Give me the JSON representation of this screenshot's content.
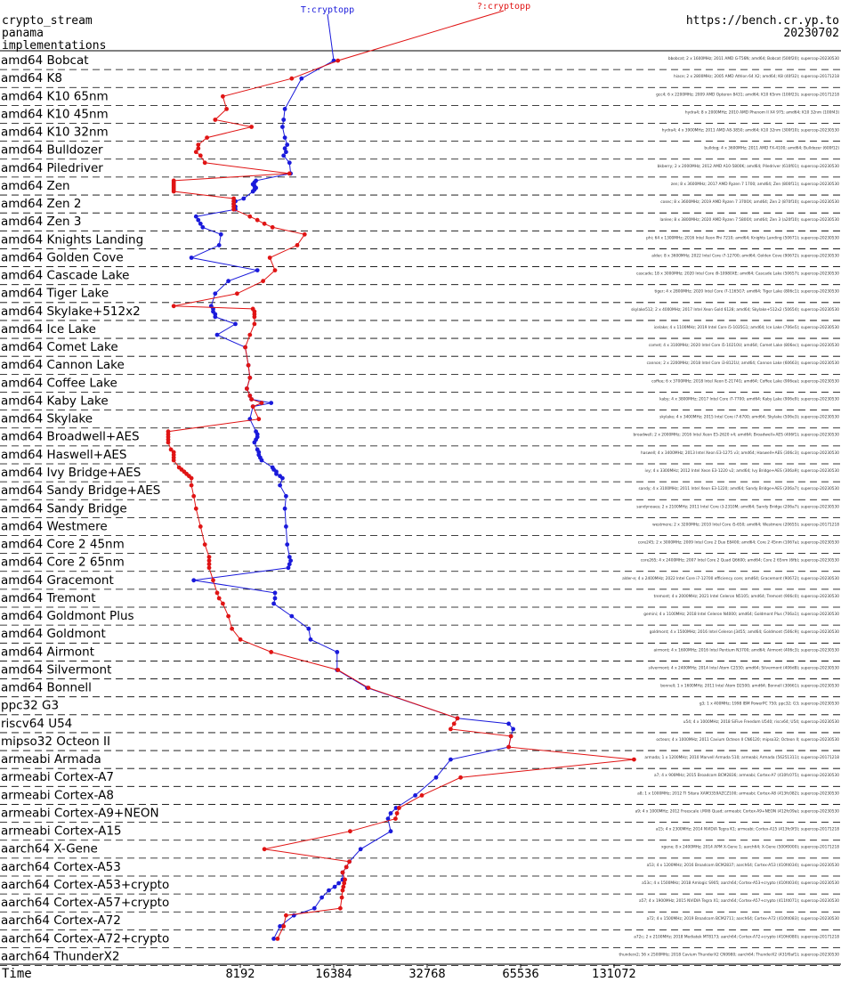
{
  "header": {
    "line1": "crypto_stream",
    "line2": "panama",
    "line3": "implementations",
    "url": "https://bench.cr.yp.to",
    "date": "20230702"
  },
  "colors": {
    "T_cryptopp": "#1a1adb",
    "Q_cryptopp": "#e01414",
    "text": "#000000",
    "grid": "#000000"
  },
  "chart_data": {
    "type": "line",
    "x_scale": "log2",
    "xlabel": "Time",
    "xticks": [
      8192,
      16384,
      32768,
      65536,
      131072
    ],
    "series": [
      {
        "name": "T:cryptopp",
        "color": "#1a1adb"
      },
      {
        "name": "?:cryptopp",
        "color": "#e01414"
      }
    ],
    "rows": [
      {
        "label": "amd64 Bobcat",
        "T": [
          16384
        ],
        "Q": [
          16900
        ]
      },
      {
        "label": "amd64 K8",
        "T": [
          12900
        ],
        "Q": [
          12000
        ]
      },
      {
        "label": "amd64 K10 65nm",
        "T": [],
        "Q": [
          7200
        ]
      },
      {
        "label": "amd64 K10 45nm",
        "T": [
          11400,
          11300
        ],
        "Q": [
          7400,
          6800
        ]
      },
      {
        "label": "amd64 K10 32nm",
        "T": [
          11200,
          11400
        ],
        "Q": [
          8900,
          6400
        ]
      },
      {
        "label": "amd64 Bulldozer",
        "T": [
          11600,
          11400,
          11500,
          11300
        ],
        "Q": [
          6000,
          6000,
          5900,
          6100
        ]
      },
      {
        "label": "amd64 Piledriver",
        "T": [
          11800,
          11900
        ],
        "Q": [
          6300,
          11800
        ]
      },
      {
        "label": "amd64 Zen",
        "T": [
          9200,
          9100,
          9000,
          9100,
          9200,
          9100,
          9000
        ],
        "Q": [
          5000,
          5000,
          5000,
          5000,
          5000,
          5000,
          5000
        ]
      },
      {
        "label": "amd64 Zen 2",
        "T": [
          8400,
          7900,
          7800,
          7900,
          7900
        ],
        "Q": [
          7800,
          7800,
          7800,
          7800,
          7800
        ]
      },
      {
        "label": "amd64 Zen 3",
        "T": [
          5900,
          6000,
          6100,
          6200
        ],
        "Q": [
          8800,
          9300,
          9800,
          10400
        ]
      },
      {
        "label": "amd64 Knights Landing",
        "T": [
          7100,
          7000
        ],
        "Q": [
          13200,
          12500
        ]
      },
      {
        "label": "amd64 Golden Cove",
        "T": [
          5700
        ],
        "Q": [
          10200
        ]
      },
      {
        "label": "amd64 Cascade Lake",
        "T": [
          9300,
          7500
        ],
        "Q": [
          10600,
          9700
        ]
      },
      {
        "label": "amd64 Tiger Lake",
        "T": [
          6800
        ],
        "Q": [
          8000
        ]
      },
      {
        "label": "amd64 Skylake+512x2",
        "T": [
          6600,
          6700,
          6700,
          6800,
          6800
        ],
        "Q": [
          5000,
          9000,
          9100,
          9100,
          9100
        ]
      },
      {
        "label": "amd64 Ice Lake",
        "T": [
          7900,
          6900
        ],
        "Q": [
          9100,
          8800
        ]
      },
      {
        "label": "amd64 Comet Lake",
        "T": [
          8500
        ],
        "Q": [
          8500
        ]
      },
      {
        "label": "amd64 Cannon Lake",
        "T": [
          8700
        ],
        "Q": [
          8700
        ]
      },
      {
        "label": "amd64 Coffee Lake",
        "T": [
          8800,
          8600
        ],
        "Q": [
          8800,
          8600
        ]
      },
      {
        "label": "amd64 Kaby Lake",
        "T": [
          8800,
          8900,
          10300,
          9000
        ],
        "Q": [
          8800,
          8900,
          9600,
          9000
        ]
      },
      {
        "label": "amd64 Skylake",
        "T": [
          8800
        ],
        "Q": [
          9400
        ]
      },
      {
        "label": "amd64 Broadwell+AES",
        "T": [
          9200,
          9300,
          9300,
          9200,
          9100
        ],
        "Q": [
          4800,
          4800,
          4800,
          4800,
          4800
        ]
      },
      {
        "label": "amd64 Haswell+AES",
        "T": [
          9300,
          9400,
          9400,
          9500,
          9600
        ],
        "Q": [
          4900,
          5000,
          5000,
          5000,
          5000
        ]
      },
      {
        "label": "amd64 Ivy Bridge+AES",
        "T": [
          10400,
          10500,
          10700,
          10700,
          11000,
          11200
        ],
        "Q": [
          5200,
          5300,
          5400,
          5500,
          5600,
          5700
        ]
      },
      {
        "label": "amd64 Sandy Bridge+AES",
        "T": [
          11000,
          11500
        ],
        "Q": [
          5700,
          5800
        ]
      },
      {
        "label": "amd64 Sandy Bridge",
        "T": [
          11400
        ],
        "Q": [
          5900
        ]
      },
      {
        "label": "amd64 Westmere",
        "T": [
          11500
        ],
        "Q": [
          6100
        ]
      },
      {
        "label": "amd64 Core 2 45nm",
        "T": [
          11600
        ],
        "Q": [
          6300
        ]
      },
      {
        "label": "amd64 Core 2 65nm",
        "T": [
          11800,
          11900,
          11800,
          11700
        ],
        "Q": [
          6500,
          6500,
          6500,
          6500
        ]
      },
      {
        "label": "amd64 Gracemont",
        "T": [
          5800
        ],
        "Q": [
          6700
        ]
      },
      {
        "label": "amd64 Tremont",
        "T": [
          10600,
          10600,
          10500
        ],
        "Q": [
          6900,
          7000,
          7200
        ]
      },
      {
        "label": "amd64 Goldmont Plus",
        "T": [
          12000
        ],
        "Q": [
          7500
        ]
      },
      {
        "label": "amd64 Goldmont",
        "T": [
          13600,
          13800
        ],
        "Q": [
          7700,
          8200
        ]
      },
      {
        "label": "amd64 Airmont",
        "T": [
          16800
        ],
        "Q": [
          10300
        ]
      },
      {
        "label": "amd64 Silvermont",
        "T": [
          16800
        ],
        "Q": [
          16900
        ]
      },
      {
        "label": "amd64 Bonnell",
        "T": [
          21000
        ],
        "Q": [
          21200
        ]
      },
      {
        "label": "ppc32 G3",
        "T": [],
        "Q": []
      },
      {
        "label": "riscv64 U54",
        "T": [
          41000,
          60000,
          62000
        ],
        "Q": [
          41000,
          40000,
          39000
        ]
      },
      {
        "label": "mipso32 Octeon II",
        "T": [
          61000,
          60000
        ],
        "Q": [
          61000,
          60000
        ]
      },
      {
        "label": "armeabi Armada",
        "T": [
          39000
        ],
        "Q": [
          152000
        ]
      },
      {
        "label": "armeabi Cortex-A7",
        "T": [
          35000
        ],
        "Q": [
          42000
        ]
      },
      {
        "label": "armeabi Cortex-A8",
        "T": [
          30000
        ],
        "Q": [
          31500
        ]
      },
      {
        "label": "armeabi Cortex-A9+NEON",
        "T": [
          26000,
          25000,
          24500
        ],
        "Q": [
          26600,
          26200,
          25900
        ]
      },
      {
        "label": "armeabi Cortex-A15",
        "T": [
          25000
        ],
        "Q": [
          18500
        ]
      },
      {
        "label": "aarch64 X-Gene",
        "T": [
          20000
        ],
        "Q": [
          9800
        ]
      },
      {
        "label": "aarch64 Cortex-A53",
        "T": [
          18400,
          18000,
          17500
        ],
        "Q": [
          18400,
          18000,
          17500
        ]
      },
      {
        "label": "aarch64 Cortex-A53+crypto",
        "T": [
          17500,
          17000,
          16500,
          15800
        ],
        "Q": [
          17800,
          17700,
          17600,
          17500
        ]
      },
      {
        "label": "aarch64 Cortex-A57+crypto",
        "T": [
          15000,
          14200
        ],
        "Q": [
          17400,
          17200
        ]
      },
      {
        "label": "aarch64 Cortex-A72",
        "T": [
          12200,
          11000
        ],
        "Q": [
          11500,
          11300
        ]
      },
      {
        "label": "aarch64 Cortex-A72+crypto",
        "T": [
          10500
        ],
        "Q": [
          10800
        ]
      },
      {
        "label": "aarch64 ThunderX2",
        "T": [],
        "Q": []
      }
    ],
    "annotations": [
      "bbobcat; 2 x 1600MHz; 2011 AMD G-T56N; amd64; Bobcat (500f20); supercop-20230530",
      "hiace; 2 x 2800MHz; 2005 AMD Athlon 64 X2; amd64; K8 (40f32); supercop-20171218",
      "gcc4; 6 x 2200MHz; 2009 AMD Opteron 8431; amd64; K10 65nm (100f23); supercop-20171218",
      "hydra4; 8 x 2000MHz; 2010 AMD Phenom II X4 975; amd64; K10 32nm (100f43)",
      "hydra4; 4 x 3900MHz; 2011 AMD A8-3850; amd64; K10 32nm (300f10); supercop-20230530",
      "bulldog; 4 x 3600MHz; 2011 AMD FX-4100; amd64; Bulldozer (600f12)",
      "bkberry; 2 x 2000MHz; 2012 AMD A10-5800K; amd64; Piledriver (610f01); supercop-20230530",
      "zen; 8 x 3600MHz; 2017 AMD Ryzen 7 1700; amd64; Zen (800f11); supercop-20230530",
      "cosec; 8 x 3600MHz; 2019 AMD Ryzen 7 3700X; amd64; Zen 2 (870f10); supercop-20230530",
      "lanlee; 8 x 3800MHz; 2020 AMD Ryzen 7 5800X; amd64; Zen 3 (a20f10); supercop-20230530",
      "phi; 64 x 1300MHz; 2016 Intel Xeon Phi 7210; amd64; Knights Landing (50671); supercop-20230530",
      "alder; 8 x 3600MHz; 2022 Intel Core i7-12700; amd64; Golden Cove (90672); supercop-20230530",
      "cascade; 18 x 3000MHz; 2020 Intel Core i9-10980XE; amd64; Cascade Lake (50657); supercop-20230530",
      "tiger; 4 x 2800MHz; 2020 Intel Core i7-1165G7; amd64; Tiger Lake (806c1); supercop-20230530",
      "skylake512; 2 x 4000MHz; 2017 Intel Xeon Gold 6128; amd64; Skylake+512x2 (50654); supercop-20230530",
      "icelake; 4 x 1100MHz; 2019 Intel Core i5-1035G1; amd64; Ice Lake (706e5); supercop-20230530",
      "comet; 4 x 3100MHz; 2020 Intel Core i5-10210U; amd64; Comet Lake (806ec); supercop-20230530",
      "cannon; 2 x 2200MHz; 2018 Intel Core i3-8121U; amd64; Cannon Lake (60663); supercop-20230530",
      "coffee; 6 x 3700MHz; 2018 Intel Xeon E-2174G; amd64; Coffee Lake (906ea); supercop-20230530",
      "kaby; 4 x 3800MHz; 2017 Intel Core i7-7700; amd64; Kaby Lake (906e9); supercop-20230530",
      "skylake; 4 x 3400MHz; 2015 Intel Core i7-6700; amd64; Skylake (506e3); supercop-20230530",
      "broadwell; 2 x 2000MHz; 2016 Intel Xeon E5-2620 v4; amd64; Broadwell+AES (406f1); supercop-20230530",
      "haswell; 4 x 3400MHz; 2013 Intel Xeon E3-1275 v3; amd64; Haswell+AES (306c3); supercop-20230530",
      "ivy; 4 x 3300MHz; 2012 Intel Xeon E3-1220 v2; amd64; Ivy Bridge+AES (306a9); supercop-20230530",
      "sandy; 4 x 3100MHz; 2011 Intel Xeon E3-1220; amd64; Sandy Bridge+AES (206a7); supercop-20230530",
      "sandynoaes; 2 x 2100MHz; 2011 Intel Core i3-2310M; amd64; Sandy Bridge (206a7); supercop-20230530",
      "westmere; 2 x 3200MHz; 2010 Intel Core i5-650; amd64; Westmere (20655); supercop-20171218",
      "core245; 2 x 3000MHz; 2009 Intel Core 2 Duo E8400; amd64; Core 2 45nm (1067a); supercop-20230530",
      "core265; 4 x 2400MHz; 2007 Intel Core 2 Quad Q6600; amd64; Core 2 65nm (6fb); supercop-20230530",
      "alder-e; 4 x 2400MHz; 2022 Intel Core i7-12700 efficiency core; amd64; Gracemont (90672); supercop-20230530",
      "tremont; 4 x 2000MHz; 2021 Intel Celeron N5105; amd64; Tremont (906c0); supercop-20230530",
      "gemini; 4 x 1100MHz; 2018 Intel Celeron N4000; amd64; Goldmont Plus (706a1); supercop-20230530",
      "goldmont; 4 x 1500MHz; 2016 Intel Celeron J3455; amd64; Goldmont (506c9); supercop-20230530",
      "airmont; 4 x 1600MHz; 2016 Intel Pentium N3700; amd64; Airmont (406c3); supercop-20230530",
      "silvermont; 4 x 2400MHz; 2014 Intel Atom C2550; amd64; Silvermont (406d8); supercop-20230530",
      "bonnell; 1 x 1600MHz; 2011 Intel Atom D2500; amd64; Bonnell (30661); supercop-20230530",
      "g3; 1 x 400MHz; 1998 IBM PowerPC 750; ppc32; G3; supercop-20230530",
      "u54; 4 x 1000MHz; 2018 SiFive Freedom U540; riscv64; U54; supercop-20230530",
      "octeon; 4 x 1000MHz; 2011 Cavium Octeon II CN6120; mipso32; Octeon II; supercop-20230530",
      "armada; 1 x 1200MHz; 2010 Marvell Armada 510; armeabi; Armada (56251311); supercop-20171218",
      "a7; 4 x 900MHz; 2015 Broadcom BCM2836; armeabi; Cortex-A7 (410fc075); supercop-20230530",
      "a8; 1 x 1000MHz; 2012 TI Sitara XAM3359AZCZ100; armeabi; Cortex-A8 (413fc082); supercop-20230530",
      "a9; 4 x 1000MHz; 2012 Freescale i.MX6 Quad; armeabi; Cortex-A9+NEON (412fc09a); supercop-20230530",
      "a15; 4 x 2300MHz; 2014 NVIDIA Tegra K1; armeabi; Cortex-A15 (413fc0f3); supercop-20171218",
      "xgene; 8 x 2400MHz; 2014 APM X-Gene 1; aarch64; X-Gene (500f0000); supercop-20171218",
      "a53; 4 x 1200MHz; 2016 Broadcom BCM2837; aarch64; Cortex-A53 (410fd034); supercop-20230530",
      "a53c; 4 x 1500MHz; 2018 Amlogic S905; aarch64; Cortex-A53+crypto (410fd034); supercop-20230530",
      "a57; 4 x 1900MHz; 2015 NVIDIA Tegra X1; aarch64; Cortex-A57+crypto (411fd071); supercop-20230530",
      "a72; 4 x 1500MHz; 2019 Broadcom BCM2711; aarch64; Cortex-A72 (410fd083); supercop-20230530",
      "a72c; 2 x 2100MHz; 2018 Mediatek MT8173; aarch64; Cortex-A72+crypto (410fd080); supercop-20171218",
      "thunderx2; 56 x 2500MHz; 2018 Cavium ThunderX2 CN9980; aarch64; ThunderX2 (431f0af1); supercop-20230530"
    ]
  }
}
